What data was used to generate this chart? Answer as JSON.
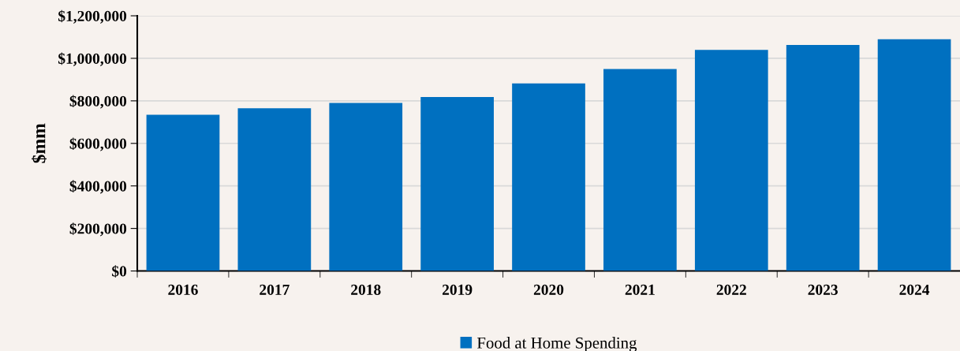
{
  "chart_data": {
    "type": "bar",
    "ylabel": "$mm",
    "categories": [
      "2016",
      "2017",
      "2018",
      "2019",
      "2020",
      "2021",
      "2022",
      "2023",
      "2024"
    ],
    "series": [
      {
        "name": "Food at Home Spending",
        "color": "#0070c0",
        "values": [
          735000,
          765000,
          790000,
          818000,
          882000,
          950000,
          1040000,
          1063000,
          1090000
        ]
      }
    ],
    "ylim": [
      0,
      1200000
    ],
    "yticks": [
      {
        "value": 0,
        "label": "$0"
      },
      {
        "value": 200000,
        "label": "$200,000"
      },
      {
        "value": 400000,
        "label": "$400,000"
      },
      {
        "value": 600000,
        "label": "$600,000"
      },
      {
        "value": 800000,
        "label": "$800,000"
      },
      {
        "value": 1000000,
        "label": "$1,000,000"
      },
      {
        "value": 1200000,
        "label": "$1,200,000"
      }
    ],
    "grid": "y",
    "legend": "bottom"
  }
}
